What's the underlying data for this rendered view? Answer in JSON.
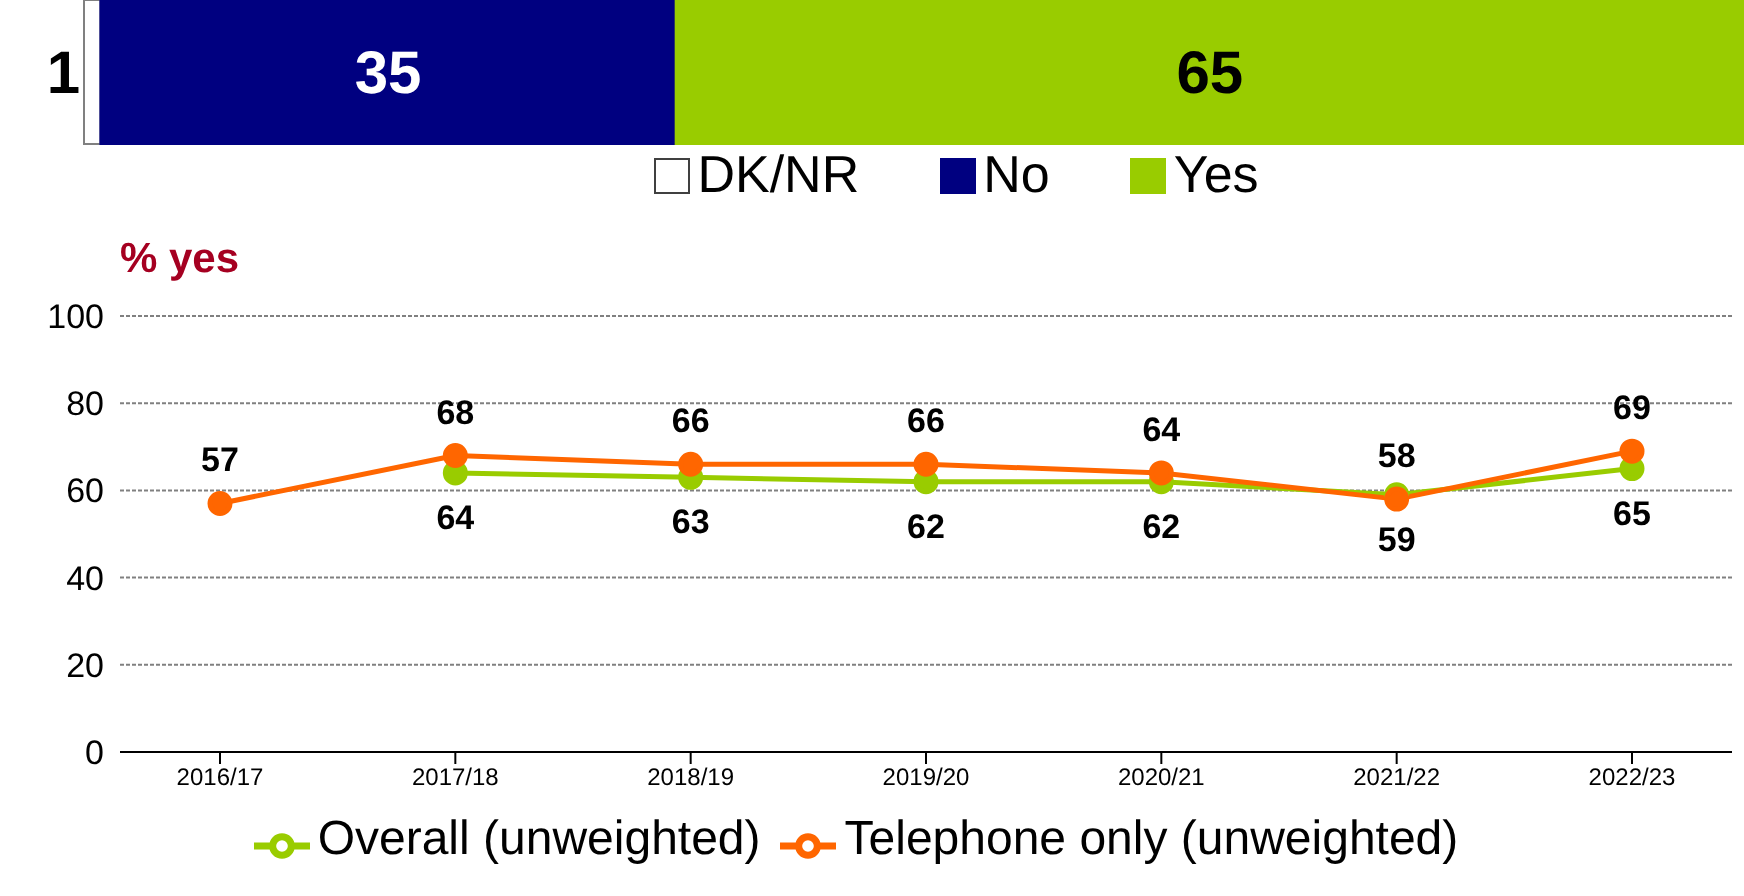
{
  "chart_data": [
    {
      "type": "bar",
      "orientation": "horizontal",
      "stacked": true,
      "categories": [
        null
      ],
      "series": [
        {
          "name": "DK/NR",
          "color": "#ffffff",
          "values": [
            1
          ]
        },
        {
          "name": "No",
          "color": "#000080",
          "values": [
            35
          ]
        },
        {
          "name": "Yes",
          "color": "#99cc00",
          "values": [
            65
          ]
        }
      ],
      "data_labels": true,
      "legend": "bottom"
    },
    {
      "type": "line",
      "ylabel": "% yes",
      "categories": [
        "2016/17",
        "2017/18",
        "2018/19",
        "2019/20",
        "2020/21",
        "2021/22",
        "2022/23"
      ],
      "series": [
        {
          "name": "Overall (unweighted)",
          "color": "#99cc00",
          "values": [
            null,
            64,
            63,
            62,
            62,
            59,
            65
          ]
        },
        {
          "name": "Telephone only (unweighted)",
          "color": "#ff6600",
          "values": [
            57,
            68,
            66,
            66,
            64,
            58,
            69
          ]
        }
      ],
      "ylim": [
        0,
        100
      ],
      "yticks": [
        0,
        20,
        40,
        60,
        80,
        100
      ],
      "grid": "y",
      "legend": "bottom",
      "marker": "circle",
      "line_style": "solid",
      "data_labels": true
    }
  ]
}
